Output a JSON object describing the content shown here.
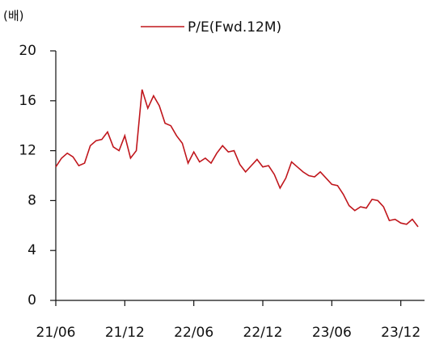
{
  "chart_data": {
    "type": "line",
    "y_unit": "(배)",
    "categories": [
      "21/06",
      null,
      null,
      null,
      null,
      null,
      null,
      null,
      null,
      null,
      null,
      null,
      "21/12",
      null,
      null,
      null,
      null,
      null,
      null,
      null,
      null,
      null,
      null,
      null,
      "22/06",
      null,
      null,
      null,
      null,
      null,
      null,
      null,
      null,
      null,
      null,
      null,
      "22/12",
      null,
      null,
      null,
      null,
      null,
      null,
      null,
      null,
      null,
      null,
      null,
      "23/06",
      null,
      null,
      null,
      null,
      null,
      null,
      null,
      null,
      null,
      null,
      null,
      "23/12",
      null,
      null,
      null
    ],
    "series": [
      {
        "name": "P/E(Fwd.12M)",
        "color": "#c0161c",
        "values": [
          10.7,
          11.4,
          11.8,
          11.5,
          10.8,
          11.0,
          12.4,
          12.8,
          12.9,
          13.5,
          12.3,
          12.0,
          13.2,
          11.4,
          12.0,
          16.9,
          15.4,
          16.4,
          15.6,
          14.2,
          14.0,
          13.2,
          12.6,
          11.0,
          11.9,
          11.1,
          11.4,
          11.0,
          11.8,
          12.4,
          11.9,
          12.0,
          10.9,
          10.3,
          10.8,
          11.3,
          10.7,
          10.8,
          10.1,
          9.0,
          9.8,
          11.1,
          10.7,
          10.3,
          10.0,
          9.9,
          10.3,
          9.8,
          9.3,
          9.2,
          8.5,
          7.6,
          7.2,
          7.5,
          7.4,
          8.1,
          8.0,
          7.5,
          6.4,
          6.5,
          6.2,
          6.1,
          6.5,
          5.9
        ]
      }
    ],
    "ylim": [
      0,
      20
    ],
    "yticks": [
      0,
      4,
      8,
      12,
      16,
      20
    ],
    "grid": false,
    "legend": "top"
  }
}
